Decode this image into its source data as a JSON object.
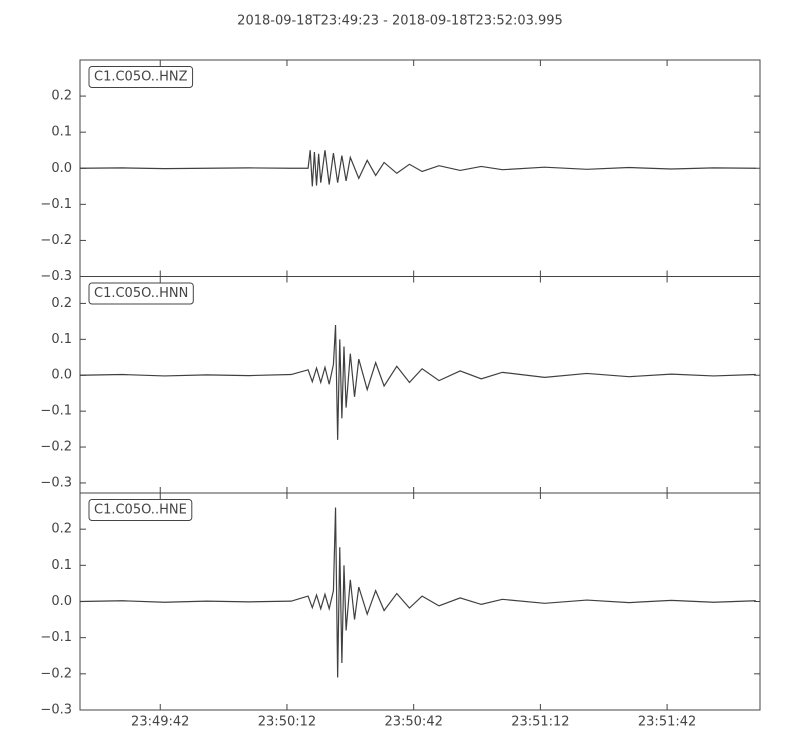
{
  "chart_data": [
    {
      "type": "line",
      "title": "2018-09-18T23:49:23  -  2018-09-18T23:52:03.995",
      "x": [
        0,
        10,
        20,
        30,
        40,
        50,
        54,
        54.5,
        55,
        55.5,
        56,
        56.5,
        57,
        58,
        59,
        60,
        61,
        62,
        63,
        64,
        66,
        68,
        70,
        72,
        75,
        78,
        81,
        85,
        90,
        95,
        100,
        110,
        120,
        130,
        140,
        150,
        160
      ],
      "series": [
        {
          "name": "C1.C05O..HNZ",
          "color": "#404040",
          "values": [
            0,
            0.001,
            -0.001,
            0,
            0.001,
            0,
            0,
            0.05,
            -0.05,
            0.045,
            -0.048,
            0.04,
            -0.04,
            0.05,
            -0.045,
            0.042,
            -0.04,
            0.035,
            -0.035,
            0.03,
            -0.028,
            0.022,
            -0.02,
            0.016,
            -0.014,
            0.011,
            -0.009,
            0.007,
            -0.006,
            0.005,
            -0.004,
            0.003,
            -0.003,
            0.002,
            -0.002,
            0.001,
            0
          ]
        }
      ],
      "ylim": [
        -0.3,
        0.3
      ],
      "yticks": [
        {
          "value": -0.3,
          "label": "−0.3"
        },
        {
          "value": -0.2,
          "label": "−0.2"
        },
        {
          "value": -0.1,
          "label": "−0.1"
        },
        {
          "value": 0,
          "label": "0.0"
        },
        0.1,
        0.2
      ]
    },
    {
      "type": "line",
      "x": [
        0,
        10,
        20,
        30,
        40,
        50,
        54,
        55,
        56,
        57,
        58,
        59,
        60,
        60.5,
        61,
        61.5,
        62,
        62.5,
        63,
        64,
        65,
        66,
        68,
        70,
        72,
        75,
        78,
        81,
        85,
        90,
        95,
        100,
        110,
        120,
        130,
        140,
        150,
        160
      ],
      "series": [
        {
          "name": "C1.C05O..HNN",
          "color": "#404040",
          "values": [
            0,
            0.002,
            -0.002,
            0.001,
            -0.001,
            0.002,
            0.015,
            -0.018,
            0.02,
            -0.02,
            0.022,
            -0.025,
            0.03,
            0.14,
            -0.18,
            0.1,
            -0.12,
            0.08,
            -0.09,
            0.06,
            -0.06,
            0.045,
            -0.04,
            0.035,
            -0.03,
            0.025,
            -0.02,
            0.018,
            -0.015,
            0.012,
            -0.01,
            0.008,
            -0.006,
            0.005,
            -0.004,
            0.003,
            -0.002,
            0.002
          ]
        }
      ],
      "ylim": [
        -0.328,
        0.275
      ],
      "yticks": [
        {
          "value": -0.3,
          "label": "−0.3"
        },
        {
          "value": -0.2,
          "label": "−0.2"
        },
        {
          "value": -0.1,
          "label": "−0.1"
        },
        {
          "value": 0,
          "label": "0.0"
        },
        0.1,
        0.2
      ]
    },
    {
      "type": "line",
      "x": [
        0,
        10,
        20,
        30,
        40,
        50,
        54,
        55,
        56,
        57,
        58,
        59,
        60,
        60.5,
        61,
        61.5,
        62,
        62.5,
        63,
        64,
        65,
        66,
        68,
        70,
        72,
        75,
        78,
        81,
        85,
        90,
        95,
        100,
        110,
        120,
        130,
        140,
        150,
        160
      ],
      "series": [
        {
          "name": "C1.C05O..HNE",
          "color": "#404040",
          "values": [
            0,
            0.002,
            -0.002,
            0.001,
            -0.001,
            0.001,
            0.015,
            -0.017,
            0.018,
            -0.02,
            0.02,
            -0.02,
            0.03,
            0.26,
            -0.21,
            0.15,
            -0.17,
            0.1,
            -0.08,
            0.06,
            -0.05,
            0.04,
            -0.035,
            0.03,
            -0.025,
            0.022,
            -0.018,
            0.015,
            -0.012,
            0.01,
            -0.008,
            0.006,
            -0.005,
            0.004,
            -0.003,
            0.003,
            -0.002,
            0.002
          ]
        }
      ],
      "ylim": [
        -0.3,
        0.3
      ],
      "yticks": [
        {
          "value": -0.3,
          "label": "−0.3"
        },
        {
          "value": -0.2,
          "label": "−0.2"
        },
        {
          "value": -0.1,
          "label": "−0.1"
        },
        {
          "value": 0,
          "label": "0.0"
        },
        0.1,
        0.2
      ],
      "xlim": [
        0,
        160.995
      ],
      "xticks": [
        {
          "value": 19,
          "label": "23:49:42"
        },
        {
          "value": 49,
          "label": "23:50:12"
        },
        {
          "value": 79,
          "label": "23:50:42"
        },
        {
          "value": 109,
          "label": "23:51:12"
        },
        {
          "value": 139,
          "label": "23:51:42"
        }
      ]
    }
  ]
}
